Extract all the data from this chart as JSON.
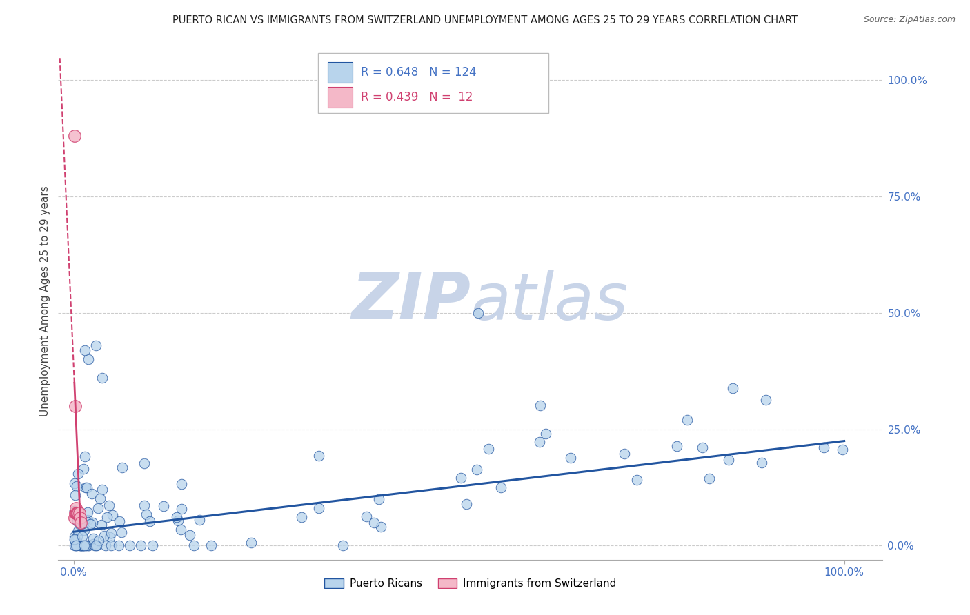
{
  "title": "PUERTO RICAN VS IMMIGRANTS FROM SWITZERLAND UNEMPLOYMENT AMONG AGES 25 TO 29 YEARS CORRELATION CHART",
  "source": "Source: ZipAtlas.com",
  "ylabel": "Unemployment Among Ages 25 to 29 years",
  "blue_color": "#b8d4ec",
  "blue_line_color": "#2255a0",
  "pink_color": "#f4b8c8",
  "pink_line_color": "#d04070",
  "blue_label": "Puerto Ricans",
  "pink_label": "Immigrants from Switzerland",
  "watermark_zip": "ZIP",
  "watermark_atlas": "atlas",
  "watermark_color": "#c8d4e8",
  "background_color": "#ffffff",
  "grid_color": "#cccccc",
  "title_color": "#222222",
  "axis_label_color": "#4472c4",
  "right_tick_color": "#4472c4"
}
